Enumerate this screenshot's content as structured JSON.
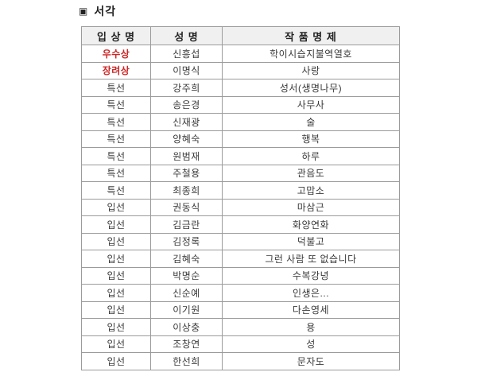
{
  "page": {
    "bullet_icon": "▣",
    "title": "서각"
  },
  "colors": {
    "highlight_red": "#cc2626",
    "header_bg": "#f0f0f0",
    "border_gray": "#9b9b9b"
  },
  "table": {
    "headers": [
      "입 상 명",
      "성 명",
      "작 품 명 제"
    ],
    "rows": [
      {
        "prize": "우수상",
        "name": "신흥섭",
        "work": "학이시습지불역열호",
        "highlight": true
      },
      {
        "prize": "장려상",
        "name": "이명식",
        "work": "사랑",
        "highlight": true
      },
      {
        "prize": "특선",
        "name": "강주희",
        "work": "성서(생명나무)",
        "highlight": false
      },
      {
        "prize": "특선",
        "name": "송은경",
        "work": "사무사",
        "highlight": false
      },
      {
        "prize": "특선",
        "name": "신재광",
        "work": "술",
        "highlight": false
      },
      {
        "prize": "특선",
        "name": "양혜숙",
        "work": "행복",
        "highlight": false
      },
      {
        "prize": "특선",
        "name": "원범재",
        "work": "하루",
        "highlight": false
      },
      {
        "prize": "특선",
        "name": "주철용",
        "work": "관음도",
        "highlight": false
      },
      {
        "prize": "특선",
        "name": "최종희",
        "work": "고맙소",
        "highlight": false
      },
      {
        "prize": "입선",
        "name": "권동식",
        "work": "마삼근",
        "highlight": false
      },
      {
        "prize": "입선",
        "name": "김금란",
        "work": "화양연화",
        "highlight": false
      },
      {
        "prize": "입선",
        "name": "김정록",
        "work": "덕불고",
        "highlight": false
      },
      {
        "prize": "입선",
        "name": "김혜숙",
        "work": "그런 사람 또 없습니다",
        "highlight": false
      },
      {
        "prize": "입선",
        "name": "박명순",
        "work": "수복강녕",
        "highlight": false
      },
      {
        "prize": "입선",
        "name": "신순예",
        "work": "인생은...",
        "highlight": false
      },
      {
        "prize": "입선",
        "name": "이기원",
        "work": "다손영세",
        "highlight": false
      },
      {
        "prize": "입선",
        "name": "이상충",
        "work": "용",
        "highlight": false
      },
      {
        "prize": "입선",
        "name": "조창연",
        "work": "성",
        "highlight": false
      },
      {
        "prize": "입선",
        "name": "한선희",
        "work": "문자도",
        "highlight": false
      }
    ]
  }
}
